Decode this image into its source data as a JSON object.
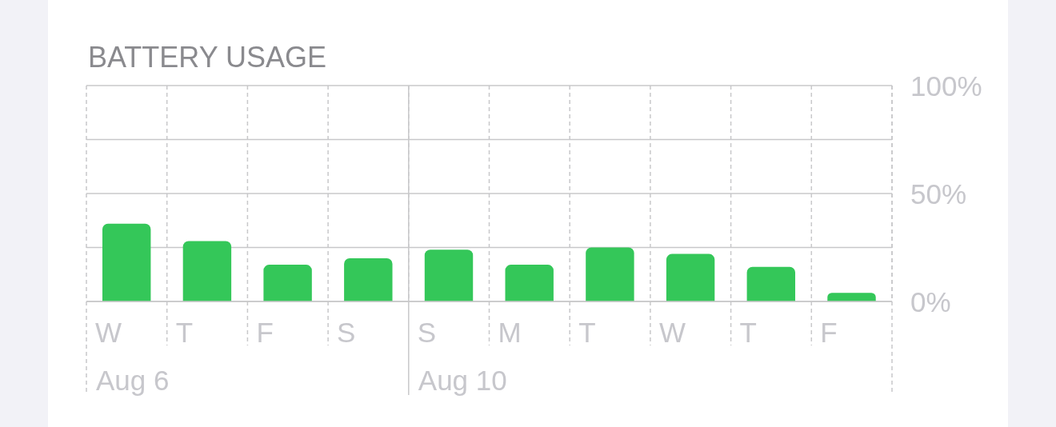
{
  "chart_data": {
    "type": "bar",
    "title": "BATTERY USAGE",
    "categories": [
      "W\nAug 6",
      "T",
      "F",
      "S",
      "S\nAug 10",
      "M",
      "T",
      "W",
      "T",
      "F"
    ],
    "values": [
      36,
      28,
      17,
      20,
      24,
      17,
      25,
      22,
      16,
      4
    ],
    "color": "#34c759",
    "ylim": [
      0,
      100
    ],
    "yticks": [
      {
        "value": 0,
        "label": "0%"
      },
      {
        "value": 25,
        "label": null
      },
      {
        "value": 50,
        "label": "50%"
      },
      {
        "value": 75,
        "label": null
      },
      {
        "value": 100,
        "label": "100%"
      }
    ],
    "grid": true
  }
}
